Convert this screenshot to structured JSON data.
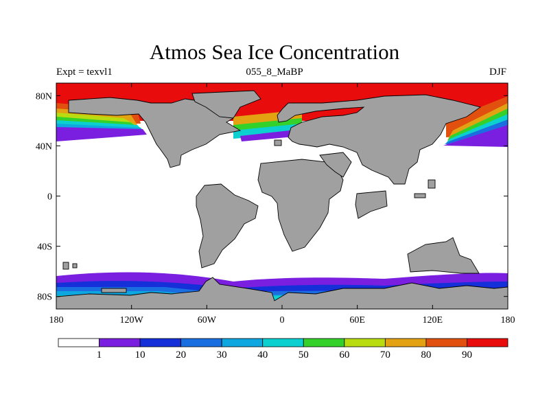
{
  "title": "Atmos Sea Ice Concentration",
  "subtitle_left": "Expt = texvl1",
  "subtitle_center": "055_8_MaBP",
  "subtitle_right": "DJF",
  "lat_ticks": [
    {
      "value": 80,
      "label": "80N"
    },
    {
      "value": 40,
      "label": "40N"
    },
    {
      "value": 0,
      "label": "0"
    },
    {
      "value": -40,
      "label": "40S"
    },
    {
      "value": -80,
      "label": "80S"
    }
  ],
  "lon_ticks": [
    {
      "value": -180,
      "label": "180"
    },
    {
      "value": -120,
      "label": "120W"
    },
    {
      "value": -60,
      "label": "60W"
    },
    {
      "value": 0,
      "label": "0"
    },
    {
      "value": 60,
      "label": "60E"
    },
    {
      "value": 120,
      "label": "120E"
    },
    {
      "value": 180,
      "label": "180"
    }
  ],
  "colorbar": {
    "colors": [
      "#ffffff",
      "#7a1fe0",
      "#1530d8",
      "#1b6ee0",
      "#0ea7e0",
      "#0ccfcf",
      "#33d12a",
      "#b8dc10",
      "#e2a212",
      "#e2500f",
      "#e80c0c"
    ],
    "labels": [
      "1",
      "10",
      "20",
      "30",
      "40",
      "50",
      "60",
      "70",
      "80",
      "90"
    ]
  },
  "colors": {
    "land": "#a0a0a0",
    "ocean": "#ffffff",
    "ice_full": "#e80c0c"
  }
}
